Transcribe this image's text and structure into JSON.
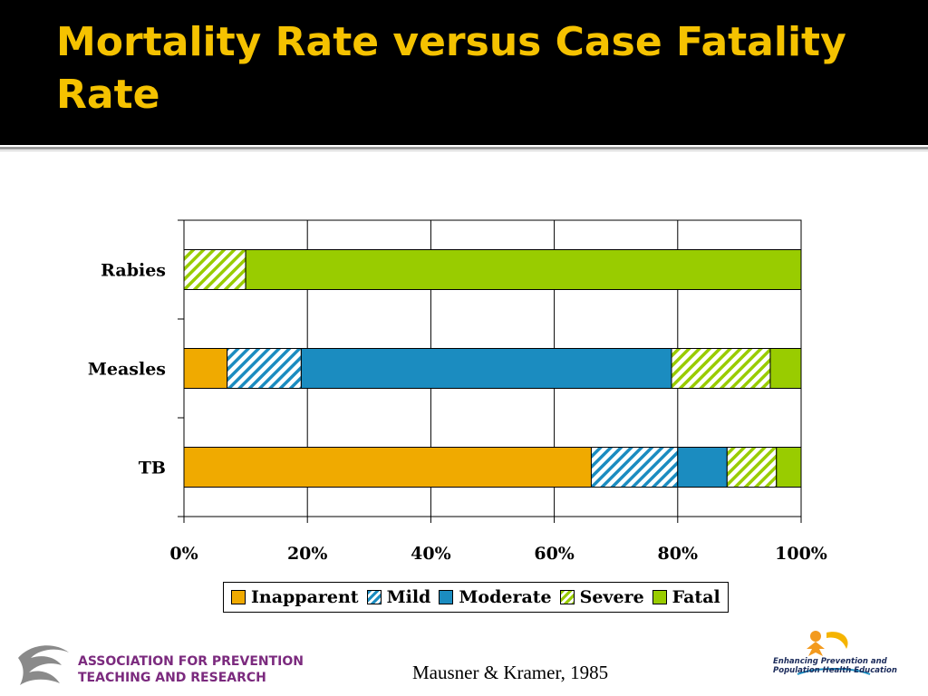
{
  "slide": {
    "title": "Mortality Rate versus Case Fatality Rate",
    "citation": "Mausner & Kramer, 1985",
    "logo_left_text": [
      "ASSOCIATION FOR PREVENTION",
      "TEACHING AND RESEARCH"
    ],
    "logo_right_text": [
      "Enhancing Prevention and",
      "Population Health Education"
    ]
  },
  "chart_data": {
    "type": "bar",
    "orientation": "horizontal",
    "stacked": "percent",
    "categories": [
      "Rabies",
      "Measles",
      "TB"
    ],
    "series": [
      {
        "name": "Inapparent",
        "values": [
          0,
          7,
          66
        ],
        "color": "#f0aa00",
        "pattern": "solid"
      },
      {
        "name": "Mild",
        "values": [
          0,
          12,
          14
        ],
        "color": "#1b8cc0",
        "pattern": "hatch"
      },
      {
        "name": "Moderate",
        "values": [
          0,
          60,
          8
        ],
        "color": "#1b8cc0",
        "pattern": "solid"
      },
      {
        "name": "Severe",
        "values": [
          10,
          16,
          8
        ],
        "color": "#99cc00",
        "pattern": "hatch"
      },
      {
        "name": "Fatal",
        "values": [
          90,
          5,
          4
        ],
        "color": "#99cc00",
        "pattern": "solid"
      }
    ],
    "xlim": [
      0,
      100
    ],
    "xticks": [
      "0%",
      "20%",
      "40%",
      "60%",
      "80%",
      "100%"
    ],
    "grid": true,
    "legend": "bottom",
    "xlabel": "",
    "ylabel": ""
  }
}
